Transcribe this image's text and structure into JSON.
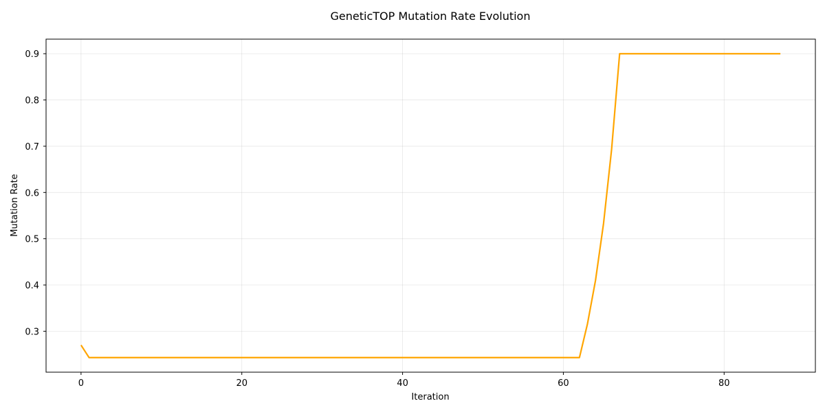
{
  "chart_data": {
    "type": "line",
    "title": "GeneticTOP Mutation Rate Evolution",
    "xlabel": "Iteration",
    "ylabel": "Mutation Rate",
    "xlim": [
      -4.35,
      91.35
    ],
    "ylim": [
      0.2115,
      0.9315
    ],
    "xticks": [
      0,
      20,
      40,
      60,
      80
    ],
    "yticks": [
      0.3,
      0.4,
      0.5,
      0.6,
      0.7,
      0.8,
      0.9
    ],
    "xtick_labels": [
      "0",
      "20",
      "40",
      "60",
      "80"
    ],
    "ytick_labels": [
      "0.3",
      "0.4",
      "0.5",
      "0.6",
      "0.7",
      "0.8",
      "0.9"
    ],
    "grid": true,
    "series": [
      {
        "color": "#FFA500",
        "x": [
          0,
          1,
          2,
          10,
          20,
          30,
          40,
          50,
          60,
          61,
          62,
          63,
          64,
          65,
          66,
          67,
          68,
          70,
          80,
          87
        ],
        "y": [
          0.27,
          0.243,
          0.243,
          0.243,
          0.243,
          0.243,
          0.243,
          0.243,
          0.243,
          0.243,
          0.243,
          0.316,
          0.41,
          0.533,
          0.693,
          0.9,
          0.9,
          0.9,
          0.9,
          0.9
        ]
      }
    ]
  }
}
